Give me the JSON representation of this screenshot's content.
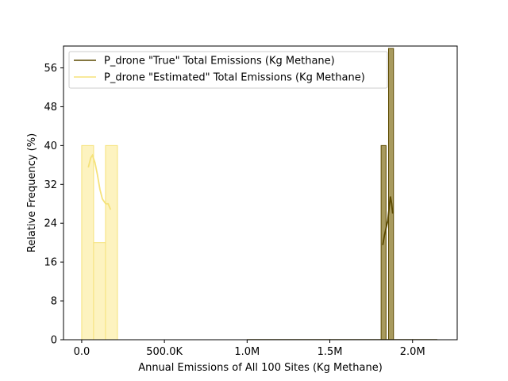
{
  "chart_data": {
    "type": "histogram",
    "xlabel": "Annual Emissions of All 100 Sites (Kg Methane)",
    "ylabel": "Relative Frequency (%)",
    "xlim": [
      -110000,
      2270000
    ],
    "ylim": [
      0,
      60.5
    ],
    "x_ticks": [
      {
        "value": 0,
        "label": "0.0"
      },
      {
        "value": 500000,
        "label": "500.0K"
      },
      {
        "value": 1000000,
        "label": "1.0M"
      },
      {
        "value": 1500000,
        "label": "1.5M"
      },
      {
        "value": 2000000,
        "label": "2.0M"
      }
    ],
    "y_ticks": [
      0,
      8,
      16,
      24,
      32,
      40,
      48,
      56
    ],
    "legend_position": "top-left",
    "series": [
      {
        "name": "P_drone \"True\" Total Emissions (Kg Methane)",
        "color": "#5c4a00",
        "fill": "#a89a5e",
        "bins": [
          {
            "x0": 1810000,
            "x1": 1840000,
            "value": 40
          },
          {
            "x0": 1840000,
            "x1": 1855000,
            "value": 0
          },
          {
            "x0": 1855000,
            "x1": 1885000,
            "value": 60
          }
        ],
        "kde": [
          [
            1820000,
            19.5
          ],
          [
            1830000,
            21.5
          ],
          [
            1840000,
            23
          ],
          [
            1850000,
            24.5
          ],
          [
            1858000,
            27
          ],
          [
            1866000,
            29.5
          ],
          [
            1874000,
            28
          ],
          [
            1880000,
            26
          ]
        ]
      },
      {
        "name": "P_drone \"Estimated\" Total Emissions (Kg Methane)",
        "color": "#f5e27a",
        "fill": "#fdf3c0",
        "bins": [
          {
            "x0": 0,
            "x1": 72000,
            "value": 40
          },
          {
            "x0": 72000,
            "x1": 144000,
            "value": 20
          },
          {
            "x0": 144000,
            "x1": 216000,
            "value": 40
          }
        ],
        "kde": [
          [
            40000,
            35.5
          ],
          [
            55000,
            37.5
          ],
          [
            65000,
            38
          ],
          [
            80000,
            36.5
          ],
          [
            95000,
            34
          ],
          [
            110000,
            31
          ],
          [
            125000,
            29
          ],
          [
            145000,
            28
          ],
          [
            160000,
            28
          ],
          [
            175000,
            26.8
          ]
        ]
      }
    ]
  }
}
